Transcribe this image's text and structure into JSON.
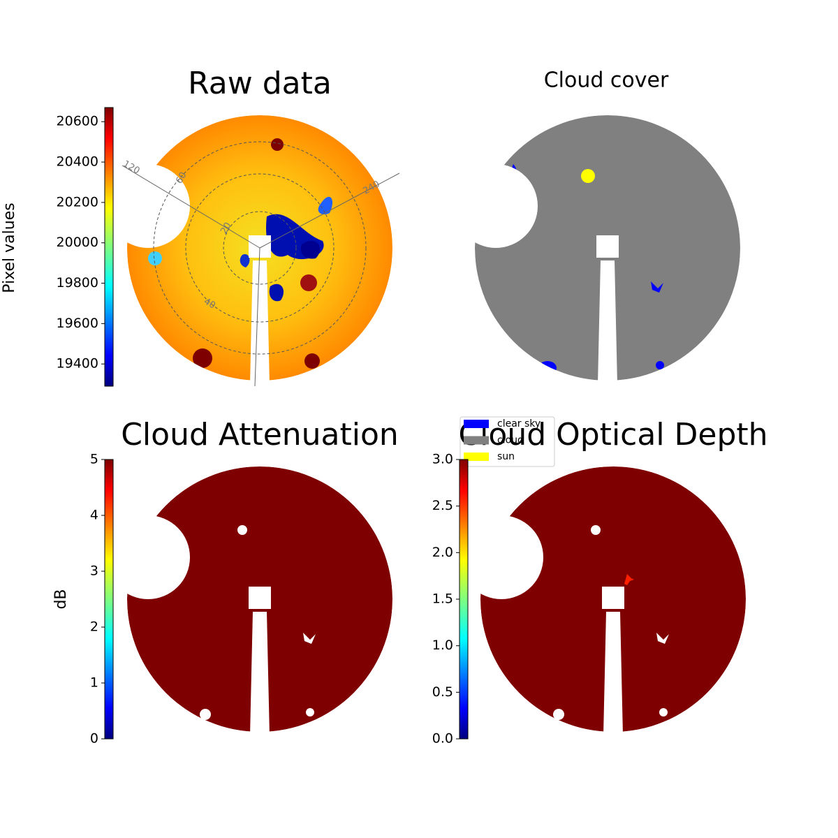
{
  "chart_data": [
    {
      "type": "image",
      "title": "Raw data",
      "ylabel": "Pixel values",
      "ylim": [
        19290,
        20670
      ],
      "yticks": [
        19400,
        19600,
        19800,
        20000,
        20200,
        20400,
        20600
      ],
      "annotations": [
        "120",
        "240",
        "20",
        "40",
        "60"
      ]
    },
    {
      "type": "image",
      "title": "Cloud cover",
      "series": [
        {
          "name": "clear sky",
          "color": "#0000ff"
        },
        {
          "name": "cloud",
          "color": "#808080"
        },
        {
          "name": "sun",
          "color": "#ffff00"
        }
      ]
    },
    {
      "type": "image",
      "title": "Cloud Attenuation",
      "ylabel": "dB",
      "ylim": [
        0,
        5
      ],
      "yticks": [
        0,
        1,
        2,
        3,
        4,
        5
      ]
    },
    {
      "type": "image",
      "title": "Cloud Optical Depth",
      "ylim": [
        0,
        3
      ],
      "yticks": [
        {
          "value": 0,
          "label": "0.0"
        },
        {
          "value": 0.5,
          "label": "0.5"
        },
        {
          "value": 1,
          "label": "1.0"
        },
        {
          "value": 1.5,
          "label": "1.5"
        },
        {
          "value": 2,
          "label": "2.0"
        },
        {
          "value": 2.5,
          "label": "2.5"
        },
        {
          "value": 3,
          "label": "3.0"
        }
      ]
    }
  ]
}
